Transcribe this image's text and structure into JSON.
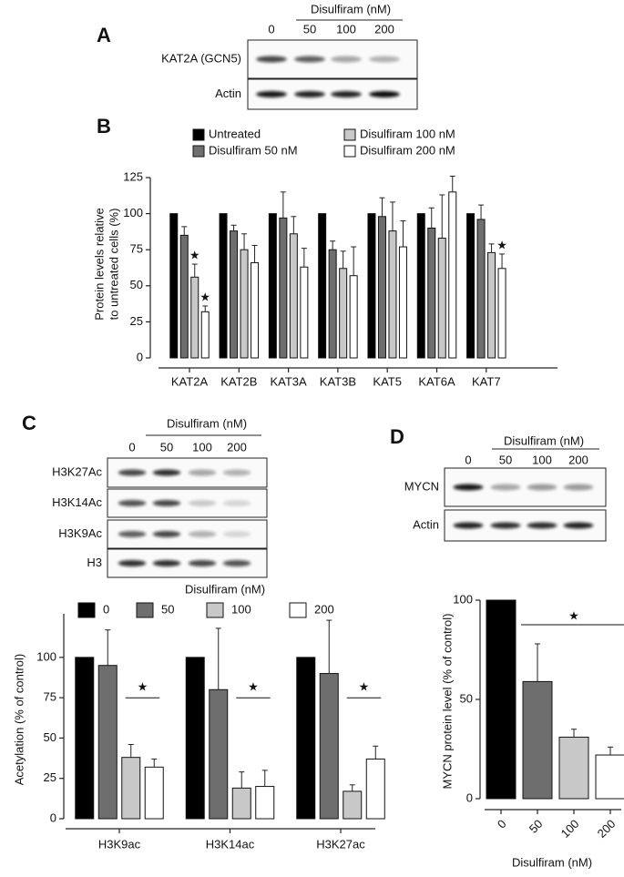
{
  "panel_labels": [
    "A",
    "B",
    "C",
    "D"
  ],
  "blots": [
    {
      "treatment": "Disulfiram (nM)",
      "doses": [
        "0",
        "50",
        "100",
        "200"
      ],
      "rows": [
        "KAT2A (GCN5)",
        "Actin"
      ]
    },
    {
      "treatment": "Disulfiram (nM)",
      "doses": [
        "0",
        "50",
        "100",
        "200"
      ],
      "rows": [
        "H3K27Ac",
        "H3K14Ac",
        "H3K9Ac",
        "H3"
      ]
    },
    {
      "treatment": "Disulfiram (nM)",
      "doses": [
        "0",
        "50",
        "100",
        "200"
      ],
      "rows": [
        "MYCN",
        "Actin"
      ]
    }
  ],
  "chart_data": [
    {
      "type": "bar",
      "ylabel": [
        "Protein levels relative",
        "to untreated cells (%)"
      ],
      "categories": [
        "KAT2A",
        "KAT2B",
        "KAT3A",
        "KAT3B",
        "KAT5",
        "KAT6A",
        "KAT7"
      ],
      "series": [
        {
          "name": "Untreated",
          "color": "#000000",
          "values": [
            100,
            100,
            100,
            100,
            100,
            100,
            100
          ],
          "errors": [
            0,
            0,
            0,
            0,
            0,
            0,
            0
          ],
          "annotations": [
            null,
            null,
            null,
            null,
            null,
            null,
            null
          ]
        },
        {
          "name": "Disulfiram 50 nM",
          "color": "#6e6e6e",
          "values": [
            85,
            88,
            97,
            75,
            98,
            90,
            96
          ],
          "errors": [
            6,
            4,
            18,
            6,
            13,
            14,
            10
          ],
          "annotations": [
            null,
            null,
            null,
            null,
            null,
            null,
            null
          ]
        },
        {
          "name": "Disulfiram 100 nM",
          "color": "#c8c8c8",
          "values": [
            56,
            75,
            86,
            62,
            88,
            83,
            73
          ],
          "errors": [
            9,
            11,
            12,
            12,
            20,
            30,
            6
          ],
          "annotations": [
            "★",
            null,
            null,
            null,
            null,
            null,
            null
          ]
        },
        {
          "name": "Disulfiram 200 nM",
          "color": "#ffffff",
          "values": [
            32,
            66,
            63,
            57,
            77,
            115,
            62
          ],
          "errors": [
            4,
            12,
            13,
            20,
            18,
            11,
            10
          ],
          "annotations": [
            "★",
            null,
            null,
            null,
            null,
            null,
            "★"
          ]
        }
      ],
      "ylim": [
        0,
        125
      ],
      "yticks": [
        0,
        25,
        50,
        75,
        100,
        125
      ]
    },
    {
      "type": "bar",
      "legend_title": "Disulfiram (nM)",
      "ylabel": "Acetylation (% of control)",
      "categories": [
        "H3K9ac",
        "H3K14ac",
        "H3K27ac"
      ],
      "series": [
        {
          "name": "0",
          "color": "#000000",
          "values": [
            100,
            100,
            100
          ],
          "errors": [
            0,
            0,
            0
          ]
        },
        {
          "name": "50",
          "color": "#6e6e6e",
          "values": [
            95,
            80,
            90
          ],
          "errors": [
            22,
            38,
            33
          ]
        },
        {
          "name": "100",
          "color": "#c8c8c8",
          "values": [
            38,
            19,
            17
          ],
          "errors": [
            8,
            10,
            4
          ]
        },
        {
          "name": "200",
          "color": "#ffffff",
          "values": [
            32,
            20,
            37
          ],
          "errors": [
            5,
            10,
            8
          ]
        }
      ],
      "annotations": [
        "★",
        "★",
        "★"
      ],
      "ylim": [
        0,
        127
      ],
      "yticks": [
        0,
        25,
        50,
        75,
        100
      ]
    },
    {
      "type": "bar",
      "ylabel": "MYCN protein level (% of control)",
      "xlabel": "Disulfiram (nM)",
      "categories": [
        "0",
        "50",
        "100",
        "200"
      ],
      "values": [
        100,
        59,
        31,
        22
      ],
      "errors": [
        0,
        19,
        4,
        4
      ],
      "colors": [
        "#000000",
        "#6e6e6e",
        "#c8c8c8",
        "#ffffff"
      ],
      "annotation": "★",
      "ylim": [
        0,
        100
      ],
      "yticks": [
        0,
        50,
        100
      ]
    }
  ]
}
